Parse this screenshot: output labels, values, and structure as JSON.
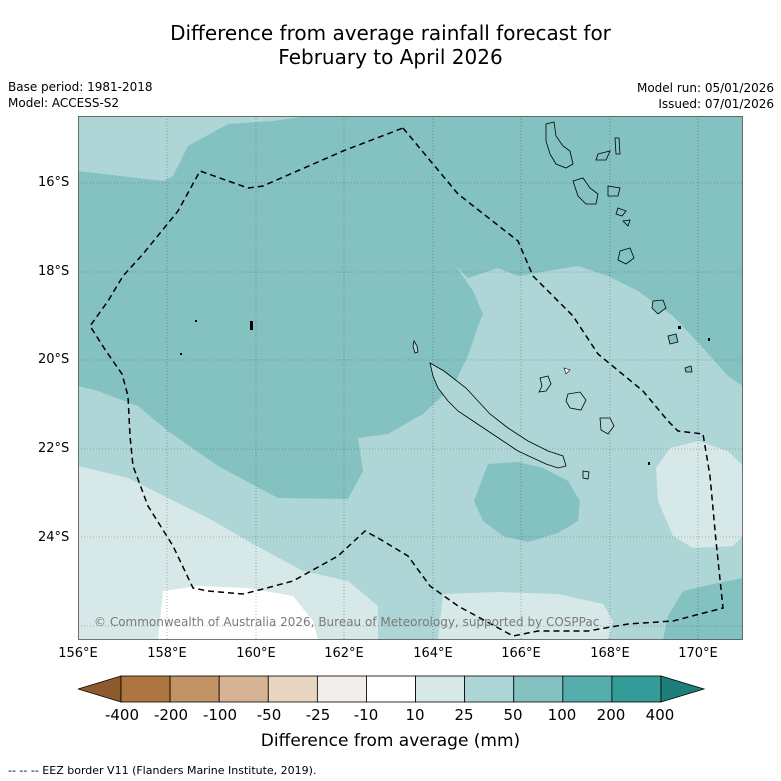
{
  "title": {
    "line1": "Difference from average rainfall forecast for",
    "line2": "February to April 2026"
  },
  "meta": {
    "base_period": "Base period: 1981-2018",
    "model": "Model: ACCESS-S2",
    "model_run": "Model run: 05/01/2026",
    "issued": "Issued: 07/01/2026"
  },
  "map": {
    "lat_labels": [
      "16°S",
      "18°S",
      "20°S",
      "22°S",
      "24°S"
    ],
    "lon_labels": [
      "156°E",
      "158°E",
      "160°E",
      "162°E",
      "164°E",
      "166°E",
      "168°E",
      "170°E"
    ],
    "copyright": "© Commonwealth of Australia 2026, Bureau of Meteorology, supported by COSPPac"
  },
  "colorbar": {
    "labels": [
      "-400",
      "-200",
      "-100",
      "-50",
      "-25",
      "-10",
      "10",
      "25",
      "50",
      "100",
      "200",
      "400"
    ],
    "colors": {
      "below_min": "#8c5a2b",
      "bins": [
        "#ad7641",
        "#c29465",
        "#d5b394",
        "#e8d5c2",
        "#f0edea",
        "#ffffff",
        "#d6e9e8",
        "#aed6d6",
        "#84c1c1",
        "#56adad",
        "#339b98"
      ],
      "above_max": "#1e7e7a"
    },
    "title": "Difference from average (mm)"
  },
  "footer": "--  --  -- EEZ border V11 (Flanders Marine Institute, 2019)."
}
